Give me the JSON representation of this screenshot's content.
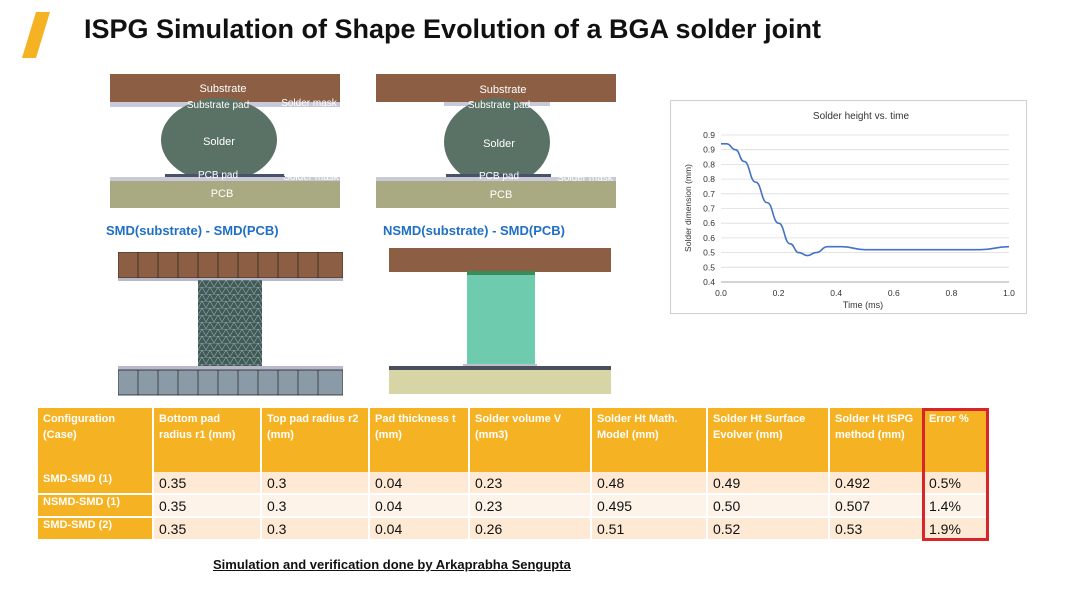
{
  "slide": {
    "title": "ISPG Simulation of Shape Evolution of a BGA solder joint",
    "accent_color": "#f5b223",
    "credit": "Simulation and verification done by Arkaprabha Sengupta"
  },
  "diagrams": {
    "left": {
      "substrate": "Substrate",
      "substrate_pad": "Substrate pad",
      "solder_mask_top": "Solder mask",
      "solder": "Solder",
      "pcb_pad": "PCB pad",
      "solder_mask_bottom": "Solder mask",
      "pcb": "PCB",
      "caption": "SMD(substrate) - SMD(PCB)"
    },
    "right": {
      "substrate": "Substrate",
      "substrate_pad": "Substrate pad",
      "solder": "Solder",
      "pcb_pad": "PCB pad",
      "solder_mask_bottom": "Solder mask",
      "pcb": "PCB",
      "caption": "NSMD(substrate) - SMD(PCB)"
    },
    "colors": {
      "substrate": "#8c5f45",
      "solder": "#5a7265",
      "pcb": "#a9a982",
      "pad": "#bfc0d2",
      "column": "#6ecbad"
    }
  },
  "chart_data": {
    "type": "line",
    "title": "Solder height vs. time",
    "xlabel": "Time (ms)",
    "ylabel": "Solder dimension (mm)",
    "xlim": [
      0,
      1.0
    ],
    "ylim": [
      0.4,
      0.9
    ],
    "x_ticks": [
      "0.0",
      "0.2",
      "0.4",
      "0.6",
      "0.8",
      "1.0"
    ],
    "y_ticks": [
      "0.9",
      "0.9",
      "0.8",
      "0.8",
      "0.7",
      "0.7",
      "0.6",
      "0.6",
      "0.5",
      "0.5",
      "0.4"
    ],
    "grid": true,
    "line_color": "#4472c4",
    "series": [
      {
        "x": [
          0.0,
          0.02,
          0.05,
          0.08,
          0.12,
          0.16,
          0.2,
          0.24,
          0.27,
          0.3,
          0.33,
          0.37,
          0.42,
          0.5,
          0.6,
          0.7,
          0.8,
          0.9,
          1.0
        ],
        "values": [
          0.87,
          0.87,
          0.85,
          0.81,
          0.74,
          0.67,
          0.6,
          0.53,
          0.5,
          0.49,
          0.5,
          0.52,
          0.52,
          0.51,
          0.51,
          0.51,
          0.51,
          0.51,
          0.52
        ]
      }
    ]
  },
  "table": {
    "headers": [
      "Configuration (Case)",
      "Bottom pad radius r1 (mm)",
      "Top pad radius r2 (mm)",
      "Pad thickness t (mm)",
      "Solder volume V (mm3)",
      "Solder Ht Math. Model (mm)",
      "Solder Ht Surface Evolver (mm)",
      "Solder Ht ISPG method (mm)",
      "Error %"
    ],
    "rows": [
      [
        "SMD-SMD (1)",
        "0.35",
        "0.3",
        "0.04",
        "0.23",
        "0.48",
        "0.49",
        "0.492",
        "0.5%"
      ],
      [
        "NSMD-SMD (1)",
        "0.35",
        "0.3",
        "0.04",
        "0.23",
        "0.495",
        "0.50",
        "0.507",
        "1.4%"
      ],
      [
        "SMD-SMD (2)",
        "0.35",
        "0.3",
        "0.04",
        "0.26",
        "0.51",
        "0.52",
        "0.53",
        "1.9%"
      ]
    ]
  }
}
